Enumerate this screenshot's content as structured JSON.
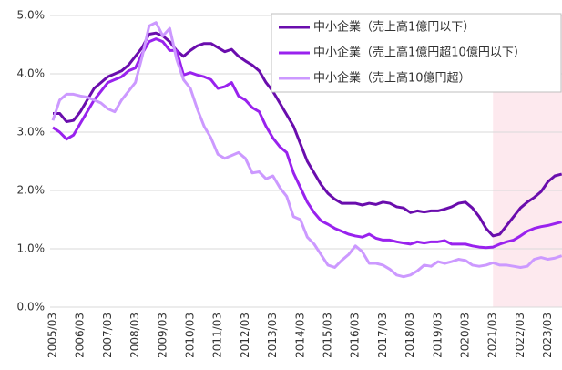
{
  "chart_data": {
    "type": "line",
    "categories": [
      "2005/03",
      null,
      null,
      null,
      "2006/03",
      null,
      null,
      null,
      "2007/03",
      null,
      null,
      null,
      "2008/03",
      null,
      null,
      null,
      "2009/03",
      null,
      null,
      null,
      "2010/03",
      null,
      null,
      null,
      "2011/03",
      null,
      null,
      null,
      "2012/03",
      null,
      null,
      null,
      "2013/03",
      null,
      null,
      null,
      "2014/03",
      null,
      null,
      null,
      "2015/03",
      null,
      null,
      null,
      "2016/03",
      null,
      null,
      null,
      "2017/03",
      null,
      null,
      null,
      "2018/03",
      null,
      null,
      null,
      "2019/03",
      null,
      null,
      null,
      "2020/03",
      null,
      null,
      null,
      "2021/03",
      null,
      null,
      null,
      "2022/03",
      null,
      null,
      null,
      "2023/03",
      null,
      null
    ],
    "series": [
      {
        "name": "中小企業（売上高1億円以下）",
        "color": "#6a0dad",
        "values": [
          3.32,
          3.32,
          3.18,
          3.2,
          3.35,
          3.55,
          3.75,
          3.85,
          3.95,
          4.0,
          4.05,
          4.15,
          4.3,
          4.45,
          4.68,
          4.7,
          4.65,
          4.55,
          4.4,
          4.3,
          4.4,
          4.48,
          4.52,
          4.52,
          4.45,
          4.38,
          4.42,
          4.3,
          4.22,
          4.15,
          4.05,
          3.85,
          3.7,
          3.5,
          3.3,
          3.1,
          2.8,
          2.5,
          2.3,
          2.1,
          1.95,
          1.85,
          1.78,
          1.78,
          1.78,
          1.75,
          1.78,
          1.76,
          1.8,
          1.78,
          1.72,
          1.7,
          1.62,
          1.65,
          1.63,
          1.65,
          1.65,
          1.68,
          1.72,
          1.78,
          1.8,
          1.7,
          1.55,
          1.35,
          1.22,
          1.25,
          1.4,
          1.55,
          1.7,
          1.8,
          1.88,
          1.98,
          2.15,
          2.25,
          2.28
        ]
      },
      {
        "name": "中小企業（売上高1億円超10億円以下）",
        "color": "#9922ee",
        "values": [
          3.08,
          3.0,
          2.88,
          2.95,
          3.15,
          3.35,
          3.55,
          3.7,
          3.85,
          3.9,
          3.95,
          4.05,
          4.1,
          4.35,
          4.55,
          4.6,
          4.55,
          4.4,
          4.4,
          3.98,
          4.02,
          3.98,
          3.95,
          3.9,
          3.75,
          3.78,
          3.85,
          3.62,
          3.55,
          3.42,
          3.35,
          3.1,
          2.9,
          2.75,
          2.65,
          2.3,
          2.05,
          1.8,
          1.62,
          1.48,
          1.42,
          1.35,
          1.3,
          1.25,
          1.22,
          1.2,
          1.25,
          1.18,
          1.15,
          1.15,
          1.12,
          1.1,
          1.08,
          1.12,
          1.1,
          1.12,
          1.12,
          1.14,
          1.08,
          1.08,
          1.08,
          1.05,
          1.03,
          1.02,
          1.03,
          1.08,
          1.12,
          1.15,
          1.22,
          1.3,
          1.35,
          1.38,
          1.4,
          1.43,
          1.46
        ]
      },
      {
        "name": "中小企業（売上高10億円超）",
        "color": "#cc99ff",
        "values": [
          3.2,
          3.55,
          3.65,
          3.65,
          3.62,
          3.6,
          3.55,
          3.5,
          3.4,
          3.35,
          3.55,
          3.7,
          3.85,
          4.3,
          4.82,
          4.88,
          4.65,
          4.78,
          4.25,
          3.9,
          3.75,
          3.4,
          3.1,
          2.9,
          2.62,
          2.55,
          2.6,
          2.65,
          2.55,
          2.3,
          2.32,
          2.2,
          2.25,
          2.05,
          1.9,
          1.55,
          1.5,
          1.2,
          1.08,
          0.9,
          0.72,
          0.68,
          0.8,
          0.9,
          1.05,
          0.95,
          0.75,
          0.75,
          0.72,
          0.65,
          0.55,
          0.52,
          0.55,
          0.62,
          0.72,
          0.7,
          0.78,
          0.75,
          0.78,
          0.82,
          0.8,
          0.72,
          0.7,
          0.72,
          0.76,
          0.72,
          0.72,
          0.7,
          0.68,
          0.7,
          0.82,
          0.85,
          0.82,
          0.84,
          0.88
        ]
      }
    ],
    "ylim": [
      0,
      5
    ],
    "yticks": [
      {
        "value": 0,
        "label": "0.0%"
      },
      {
        "value": 1,
        "label": "1.0%"
      },
      {
        "value": 2,
        "label": "2.0%"
      },
      {
        "value": 3,
        "label": "3.0%"
      },
      {
        "value": 4,
        "label": "4.0%"
      },
      {
        "value": 5,
        "label": "5.0%"
      }
    ],
    "grid": true,
    "legend": "top-right",
    "shade_start": "2021/03",
    "shade_color": "#fde9ee"
  }
}
